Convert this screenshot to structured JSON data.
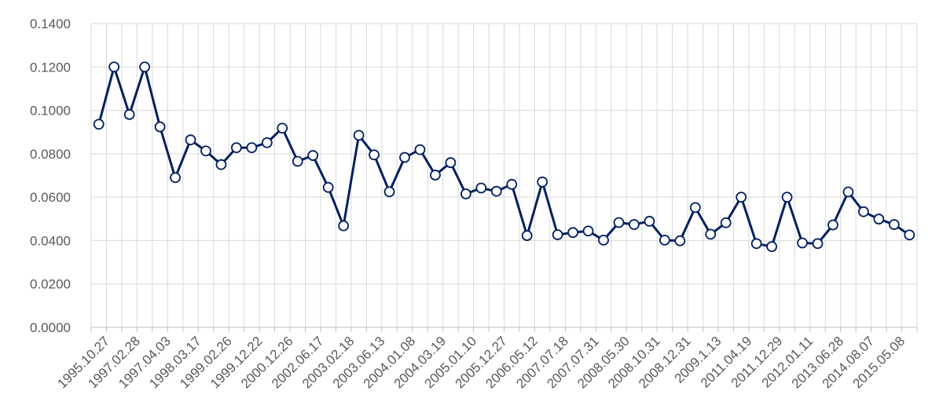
{
  "chart_data": {
    "type": "line",
    "title": "",
    "xlabel": "",
    "ylabel": "",
    "ylim": [
      0,
      0.14
    ],
    "y_ticks": [
      "0.0000",
      "0.0200",
      "0.0400",
      "0.0600",
      "0.0800",
      "0.1000",
      "0.1200",
      "0.1400"
    ],
    "x_tick_labels": [
      "1995.10.27",
      "1997.02.28",
      "1997.04.03",
      "1998.03.17",
      "1999.02.26",
      "1999.12.22",
      "2000.12.26",
      "2002.06.17",
      "2003.02.18",
      "2003.06.13",
      "2004.01.08",
      "2004.03.19",
      "2005.01.10",
      "2005.12.27",
      "2006.05.12",
      "2007.07.18",
      "2007.07.31",
      "2008.05.30",
      "2008.10.31",
      "2008.12.31",
      "2009.1.13",
      "2011.04.19",
      "2011.12.29",
      "2012.01.11",
      "2013.06.28",
      "2014.08.07",
      "2015.05.08"
    ],
    "grid": true,
    "legend": "none",
    "colors": {
      "line": "#002060",
      "marker_fill": "#ffffff",
      "grid": "#d9d9d9",
      "axis": "#bfbfbf",
      "text": "#595959"
    },
    "series": [
      {
        "values": [
          0.0936,
          0.12,
          0.0981,
          0.12,
          0.0924,
          0.069,
          0.0864,
          0.0813,
          0.075,
          0.0828,
          0.0828,
          0.0851,
          0.0918,
          0.0765,
          0.0792,
          0.0645,
          0.0468,
          0.0885,
          0.0795,
          0.0625,
          0.0783,
          0.0819,
          0.0702,
          0.0759,
          0.0615,
          0.0642,
          0.0627,
          0.0659,
          0.0423,
          0.067,
          0.0427,
          0.0437,
          0.0444,
          0.0402,
          0.0483,
          0.0474,
          0.0489,
          0.0402,
          0.0399,
          0.0552,
          0.0429,
          0.0482,
          0.06,
          0.0386,
          0.0372,
          0.06,
          0.0389,
          0.0386,
          0.0472,
          0.0624,
          0.0533,
          0.0499,
          0.0474,
          0.0426
        ]
      }
    ]
  }
}
